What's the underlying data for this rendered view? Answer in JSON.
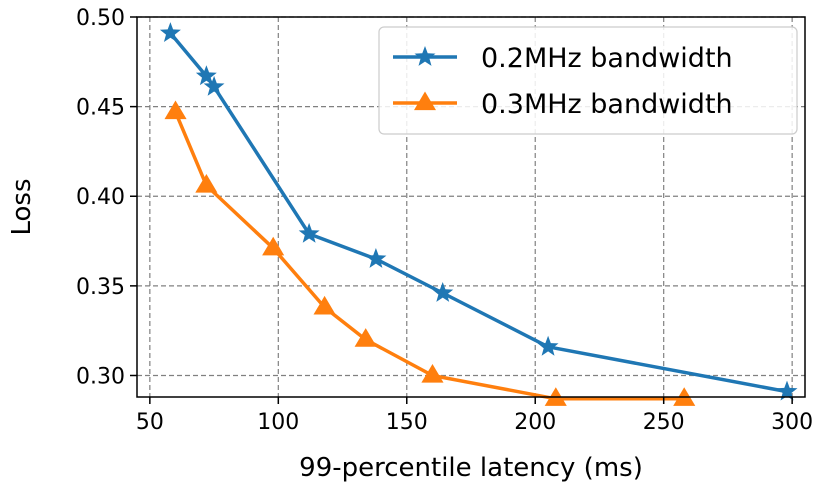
{
  "chart_data": {
    "type": "line",
    "title": "",
    "xlabel": "99-percentile latency (ms)",
    "ylabel": "Loss",
    "xlim": [
      45,
      305
    ],
    "ylim": [
      0.288,
      0.5
    ],
    "xticks": [
      50,
      100,
      150,
      200,
      250,
      300
    ],
    "yticks": [
      0.3,
      0.35,
      0.4,
      0.45,
      0.5
    ],
    "xtick_labels": [
      "50",
      "100",
      "150",
      "200",
      "250",
      "300"
    ],
    "ytick_labels": [
      "0.30",
      "0.35",
      "0.40",
      "0.45",
      "0.50"
    ],
    "grid": true,
    "legend_position": "top-right",
    "series": [
      {
        "name": "0.2MHz bandwidth",
        "color": "#1f77b4",
        "marker": "star",
        "x": [
          58,
          72,
          75,
          112,
          138,
          164,
          205,
          298
        ],
        "y": [
          0.491,
          0.467,
          0.461,
          0.379,
          0.365,
          0.346,
          0.316,
          0.291
        ]
      },
      {
        "name": "0.3MHz bandwidth",
        "color": "#ff7f0e",
        "marker": "triangle",
        "x": [
          60,
          72,
          98,
          118,
          134,
          160,
          208,
          258
        ],
        "y": [
          0.447,
          0.406,
          0.371,
          0.338,
          0.32,
          0.3,
          0.287,
          0.287
        ]
      }
    ]
  }
}
